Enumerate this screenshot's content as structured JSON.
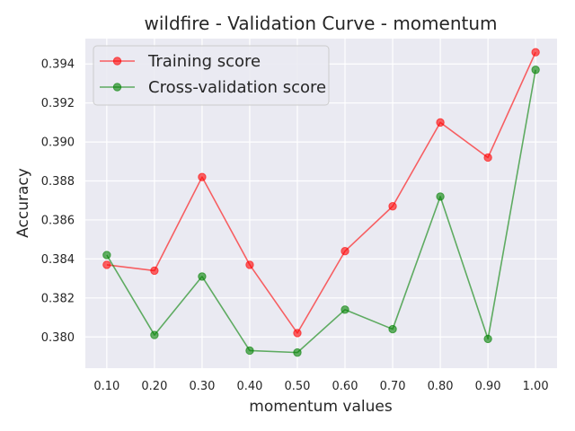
{
  "chart_data": {
    "type": "line",
    "title": "wildfire - Validation Curve - momentum",
    "xlabel": "momentum values",
    "ylabel": "Accuracy",
    "x": [
      0.1,
      0.2,
      0.3,
      0.4,
      0.5,
      0.6,
      0.7,
      0.8,
      0.9,
      1.0
    ],
    "x_tick_labels": [
      "0.10",
      "0.20",
      "0.30",
      "0.40",
      "0.50",
      "0.60",
      "0.70",
      "0.80",
      "0.90",
      "1.00"
    ],
    "y_ticks": [
      0.38,
      0.382,
      0.384,
      0.386,
      0.388,
      0.39,
      0.392,
      0.394
    ],
    "y_tick_labels": [
      "0.380",
      "0.382",
      "0.384",
      "0.386",
      "0.388",
      "0.390",
      "0.392",
      "0.394"
    ],
    "xlim": [
      0.055,
      1.045
    ],
    "ylim": [
      0.3784,
      0.3953
    ],
    "grid": true,
    "legend_position": "top-left",
    "series": [
      {
        "name": "Training score",
        "color": "#ff0000",
        "values": [
          0.3837,
          0.3834,
          0.3882,
          0.3837,
          0.3802,
          0.3844,
          0.3867,
          0.391,
          0.3892,
          0.3946
        ]
      },
      {
        "name": "Cross-validation score",
        "color": "#008000",
        "values": [
          0.3842,
          0.3801,
          0.3831,
          0.3793,
          0.3792,
          0.3814,
          0.3804,
          0.3872,
          0.3799,
          0.3937
        ]
      }
    ]
  }
}
